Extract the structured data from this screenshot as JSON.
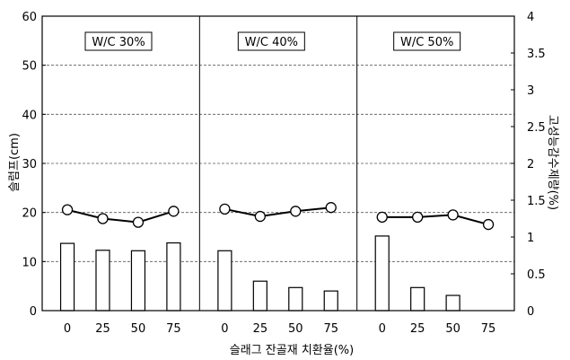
{
  "chart_data": {
    "type": "bar+line",
    "xlabel": "슬래그 잔골재 치환율(%)",
    "ylabel_left": "슬럼프(cm)",
    "ylabel_right": "고성능감수제량(%)",
    "ylim_left": [
      0,
      60
    ],
    "ylim_right": [
      0,
      4
    ],
    "yticks_left": [
      "0",
      "10",
      "20",
      "30",
      "40",
      "50",
      "60"
    ],
    "yticks_right": [
      "0",
      "0.5",
      "1",
      "1.5",
      "2",
      "2.5",
      "3",
      "3.5",
      "4"
    ],
    "grid": "horizontal dashed",
    "categories": [
      "0",
      "25",
      "50",
      "75"
    ],
    "panels": [
      {
        "label": "W/C 30%",
        "slump_bars": [
          13.7,
          12.3,
          12.2,
          13.8
        ],
        "superplasticizer_line": [
          1.37,
          1.25,
          1.2,
          1.35
        ]
      },
      {
        "label": "W/C 40%",
        "slump_bars": [
          12.2,
          6.0,
          4.7,
          4.0
        ],
        "superplasticizer_line": [
          1.38,
          1.28,
          1.35,
          1.4
        ]
      },
      {
        "label": "W/C 50%",
        "slump_bars": [
          15.2,
          4.7,
          3.1,
          0
        ],
        "superplasticizer_line": [
          1.27,
          1.27,
          1.3,
          1.17
        ]
      }
    ]
  }
}
